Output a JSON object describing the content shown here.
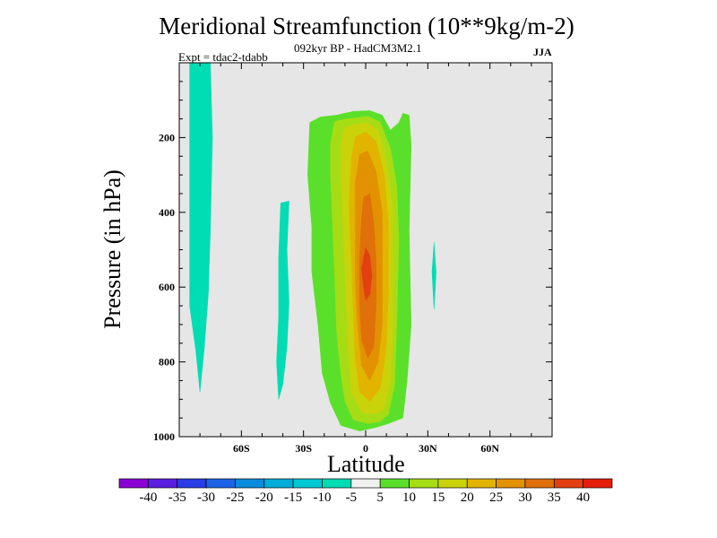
{
  "chart_data": {
    "type": "heatmap",
    "title": "Meridional Streamfunction (10**9kg/m-2)",
    "subtitle": "092kyr BP - HadCM3M2.1",
    "experiment": "Expt = tdac2-tdabb",
    "season": "JJA",
    "xlabel": "Latitude",
    "ylabel": "Pressure (in hPa)",
    "xlim": [
      -90,
      90
    ],
    "ylim": [
      0,
      1000
    ],
    "x_ticks": [
      -60,
      -30,
      0,
      30,
      60
    ],
    "x_tick_labels": [
      "60S",
      "30S",
      "0",
      "30N",
      "60N"
    ],
    "y_ticks": [
      200,
      400,
      600,
      800,
      1000
    ],
    "y_tick_labels": [
      "200",
      "400",
      "600",
      "800",
      "1000"
    ],
    "background_color": "#e6e6e6",
    "colorbar": {
      "levels": [
        -40,
        -35,
        -30,
        -25,
        -20,
        -15,
        -10,
        -5,
        5,
        10,
        15,
        20,
        25,
        30,
        35,
        40
      ],
      "labels": [
        "-40",
        "-35",
        "-30",
        "-25",
        "-20",
        "-15",
        "-10",
        "-5",
        "5",
        "10",
        "15",
        "20",
        "25",
        "30",
        "35",
        "40"
      ],
      "colors": [
        "#8a00d4",
        "#5a1ee0",
        "#2a3ce6",
        "#1e64e6",
        "#0a8cdc",
        "#00acd8",
        "#00c8d2",
        "#00dcb4",
        "#f0f0f0",
        "#5ae02a",
        "#a6dc14",
        "#cad20a",
        "#e2b400",
        "#e29200",
        "#e0700a",
        "#e24010",
        "#e41e0a"
      ]
    },
    "regions": [
      {
        "level": "-5",
        "color": "#00dcb4",
        "points": [
          [
            -85,
            0
          ],
          [
            -75,
            0
          ],
          [
            -74,
            200
          ],
          [
            -75,
            450
          ],
          [
            -76,
            620
          ],
          [
            -78,
            770
          ],
          [
            -80,
            880
          ],
          [
            -82,
            770
          ],
          [
            -85,
            650
          ],
          [
            -85,
            300
          ]
        ]
      },
      {
        "level": "-5",
        "color": "#00dcb4",
        "points": [
          [
            -41,
            375
          ],
          [
            -37,
            370
          ],
          [
            -38,
            500
          ],
          [
            -37,
            640
          ],
          [
            -38,
            760
          ],
          [
            -40,
            860
          ],
          [
            -42,
            900
          ],
          [
            -43,
            800
          ],
          [
            -42,
            680
          ],
          [
            -42,
            520
          ]
        ]
      },
      {
        "level": "-5",
        "color": "#00dcb4",
        "points": [
          [
            33,
            480
          ],
          [
            34,
            560
          ],
          [
            33,
            660
          ],
          [
            32,
            560
          ]
        ]
      },
      {
        "level": "5",
        "color": "#5ae02a",
        "points": [
          [
            -27,
            160
          ],
          [
            -22,
            145
          ],
          [
            -14,
            140
          ],
          [
            -6,
            130
          ],
          [
            2,
            128
          ],
          [
            8,
            140
          ],
          [
            12,
            180
          ],
          [
            16,
            160
          ],
          [
            18,
            135
          ],
          [
            21,
            140
          ],
          [
            22,
            220
          ],
          [
            21,
            450
          ],
          [
            22,
            700
          ],
          [
            20,
            850
          ],
          [
            18,
            950
          ],
          [
            11,
            965
          ],
          [
            5,
            975
          ],
          [
            -3,
            985
          ],
          [
            -12,
            970
          ],
          [
            -17,
            910
          ],
          [
            -21,
            830
          ],
          [
            -23,
            700
          ],
          [
            -26,
            560
          ],
          [
            -26,
            440
          ],
          [
            -28,
            300
          ]
        ]
      },
      {
        "level": "10",
        "color": "#a6dc14",
        "points": [
          [
            -15,
            158
          ],
          [
            -10,
            150
          ],
          [
            -5,
            148
          ],
          [
            1,
            143
          ],
          [
            7,
            158
          ],
          [
            12,
            230
          ],
          [
            15,
            330
          ],
          [
            16,
            470
          ],
          [
            15,
            700
          ],
          [
            14,
            860
          ],
          [
            11,
            940
          ],
          [
            7,
            960
          ],
          [
            1,
            965
          ],
          [
            -6,
            955
          ],
          [
            -10,
            905
          ],
          [
            -12,
            830
          ],
          [
            -14,
            720
          ],
          [
            -15,
            560
          ],
          [
            -16,
            430
          ],
          [
            -17,
            300
          ],
          [
            -17,
            215
          ]
        ]
      },
      {
        "level": "15",
        "color": "#cad20a",
        "points": [
          [
            -10,
            172
          ],
          [
            -5,
            165
          ],
          [
            1,
            160
          ],
          [
            6,
            180
          ],
          [
            10,
            260
          ],
          [
            13,
            380
          ],
          [
            13,
            560
          ],
          [
            13,
            740
          ],
          [
            12,
            850
          ],
          [
            9,
            925
          ],
          [
            4,
            940
          ],
          [
            -2,
            935
          ],
          [
            -7,
            880
          ],
          [
            -8,
            800
          ],
          [
            -9,
            700
          ],
          [
            -10,
            560
          ],
          [
            -11,
            420
          ],
          [
            -12,
            290
          ],
          [
            -12,
            215
          ]
        ]
      },
      {
        "level": "20",
        "color": "#e2b400",
        "points": [
          [
            -5,
            198
          ],
          [
            0,
            185
          ],
          [
            5,
            210
          ],
          [
            9,
            300
          ],
          [
            11,
            430
          ],
          [
            11,
            610
          ],
          [
            10,
            760
          ],
          [
            7,
            870
          ],
          [
            2,
            905
          ],
          [
            -3,
            880
          ],
          [
            -5,
            790
          ],
          [
            -6,
            660
          ],
          [
            -7,
            520
          ],
          [
            -8,
            380
          ],
          [
            -7,
            260
          ]
        ]
      },
      {
        "level": "25",
        "color": "#e29200",
        "points": [
          [
            -3,
            245
          ],
          [
            1,
            235
          ],
          [
            5,
            290
          ],
          [
            8,
            400
          ],
          [
            8,
            550
          ],
          [
            8,
            700
          ],
          [
            6,
            800
          ],
          [
            2,
            850
          ],
          [
            -2,
            810
          ],
          [
            -4,
            700
          ],
          [
            -5,
            580
          ],
          [
            -5,
            440
          ],
          [
            -5,
            320
          ]
        ]
      },
      {
        "level": "30",
        "color": "#e0700a",
        "points": [
          [
            -1,
            360
          ],
          [
            2,
            350
          ],
          [
            4,
            430
          ],
          [
            5,
            530
          ],
          [
            5,
            650
          ],
          [
            4,
            760
          ],
          [
            1,
            790
          ],
          [
            -2,
            740
          ],
          [
            -3,
            640
          ],
          [
            -3,
            520
          ],
          [
            -2,
            420
          ]
        ]
      },
      {
        "level": "35",
        "color": "#e24010",
        "points": [
          [
            0,
            495
          ],
          [
            2,
            515
          ],
          [
            3,
            570
          ],
          [
            2,
            620
          ],
          [
            0,
            635
          ],
          [
            -1,
            600
          ],
          [
            -2,
            550
          ]
        ]
      }
    ]
  }
}
